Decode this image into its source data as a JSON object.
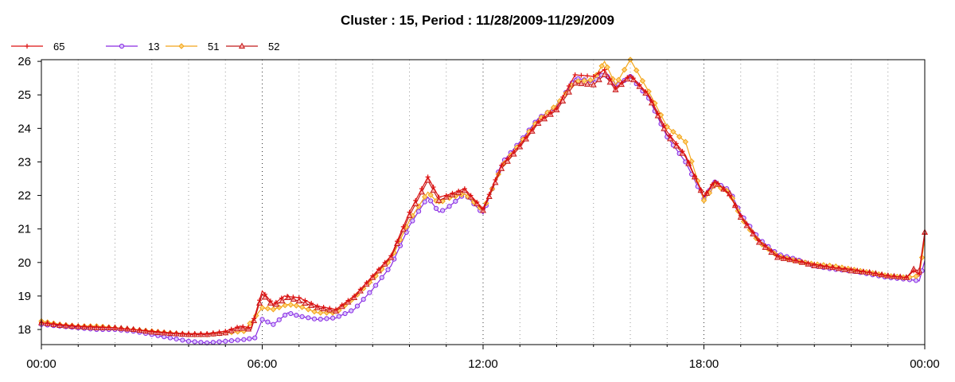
{
  "chart_data": {
    "type": "line",
    "title": "Cluster : 15, Period : 11/28/2009-11/29/2009",
    "xlabel": "",
    "ylabel": "",
    "x_unit": "hours since 11/28/2009 00:00",
    "xlim": [
      0,
      24
    ],
    "ylim": [
      17.55,
      26.05
    ],
    "x_ticks": [
      {
        "value": 0,
        "label": "00:00"
      },
      {
        "value": 6,
        "label": "06:00"
      },
      {
        "value": 12,
        "label": "12:00"
      },
      {
        "value": 18,
        "label": "18:00"
      },
      {
        "value": 24,
        "label": "00:00"
      }
    ],
    "y_ticks": [
      {
        "value": 18,
        "label": "18"
      },
      {
        "value": 19,
        "label": "19"
      },
      {
        "value": 20,
        "label": "20"
      },
      {
        "value": 21,
        "label": "21"
      },
      {
        "value": 22,
        "label": "22"
      },
      {
        "value": 23,
        "label": "23"
      },
      {
        "value": 24,
        "label": "24"
      },
      {
        "value": 25,
        "label": "25"
      },
      {
        "value": 26,
        "label": "26"
      }
    ],
    "grid": {
      "vertical_dotted_every_hours": 1,
      "horizontal": false
    },
    "legend_position": "top-left",
    "series": [
      {
        "name": "65",
        "color": "#dd1111",
        "marker": "plus",
        "points": [
          [
            0,
            18.2
          ],
          [
            0.5,
            18.15
          ],
          [
            1,
            18.1
          ],
          [
            1.5,
            18.08
          ],
          [
            2,
            18.05
          ],
          [
            2.5,
            18.0
          ],
          [
            3,
            17.95
          ],
          [
            3.5,
            17.9
          ],
          [
            4,
            17.88
          ],
          [
            4.5,
            17.88
          ],
          [
            5,
            17.95
          ],
          [
            5.4,
            18.1
          ],
          [
            5.7,
            18.05
          ],
          [
            6,
            19.15
          ],
          [
            6.3,
            18.75
          ],
          [
            6.6,
            19.0
          ],
          [
            7,
            18.95
          ],
          [
            7.5,
            18.7
          ],
          [
            8,
            18.6
          ],
          [
            8.5,
            19.0
          ],
          [
            9,
            19.6
          ],
          [
            9.5,
            20.2
          ],
          [
            10,
            21.5
          ],
          [
            10.5,
            22.55
          ],
          [
            10.8,
            21.95
          ],
          [
            11,
            22.0
          ],
          [
            11.5,
            22.2
          ],
          [
            12,
            21.6
          ],
          [
            12.5,
            22.9
          ],
          [
            13,
            23.5
          ],
          [
            13.5,
            24.2
          ],
          [
            14,
            24.6
          ],
          [
            14.5,
            25.6
          ],
          [
            15,
            25.55
          ],
          [
            15.3,
            25.75
          ],
          [
            15.6,
            25.2
          ],
          [
            16,
            25.6
          ],
          [
            16.5,
            25.0
          ],
          [
            17,
            23.9
          ],
          [
            17.5,
            23.2
          ],
          [
            18,
            21.95
          ],
          [
            18.3,
            22.45
          ],
          [
            18.7,
            22.0
          ],
          [
            19,
            21.4
          ],
          [
            19.5,
            20.65
          ],
          [
            20,
            20.2
          ],
          [
            20.5,
            20.05
          ],
          [
            21,
            19.95
          ],
          [
            21.5,
            19.85
          ],
          [
            22,
            19.8
          ],
          [
            22.5,
            19.7
          ],
          [
            23,
            19.6
          ],
          [
            23.5,
            19.55
          ],
          [
            23.7,
            19.75
          ],
          [
            23.85,
            19.65
          ],
          [
            24,
            20.85
          ]
        ]
      },
      {
        "name": "13",
        "color": "#8a2be2",
        "marker": "circle",
        "points": [
          [
            0,
            18.15
          ],
          [
            0.5,
            18.1
          ],
          [
            1,
            18.05
          ],
          [
            1.5,
            18.0
          ],
          [
            2,
            18.0
          ],
          [
            2.5,
            17.95
          ],
          [
            3,
            17.85
          ],
          [
            3.5,
            17.75
          ],
          [
            4,
            17.65
          ],
          [
            4.5,
            17.6
          ],
          [
            5,
            17.65
          ],
          [
            5.5,
            17.7
          ],
          [
            5.8,
            17.75
          ],
          [
            6,
            18.3
          ],
          [
            6.3,
            18.15
          ],
          [
            6.7,
            18.5
          ],
          [
            7,
            18.4
          ],
          [
            7.5,
            18.3
          ],
          [
            8,
            18.35
          ],
          [
            8.5,
            18.6
          ],
          [
            9,
            19.2
          ],
          [
            9.5,
            19.9
          ],
          [
            10,
            21.1
          ],
          [
            10.5,
            21.95
          ],
          [
            10.8,
            21.5
          ],
          [
            11,
            21.6
          ],
          [
            11.5,
            22.05
          ],
          [
            12,
            21.45
          ],
          [
            12.5,
            22.95
          ],
          [
            13,
            23.6
          ],
          [
            13.5,
            24.3
          ],
          [
            14,
            24.65
          ],
          [
            14.5,
            25.5
          ],
          [
            15,
            25.4
          ],
          [
            15.3,
            25.65
          ],
          [
            15.6,
            25.25
          ],
          [
            16,
            25.55
          ],
          [
            16.5,
            24.9
          ],
          [
            17,
            23.75
          ],
          [
            17.5,
            23.0
          ],
          [
            18,
            21.9
          ],
          [
            18.3,
            22.4
          ],
          [
            18.7,
            22.15
          ],
          [
            19,
            21.45
          ],
          [
            19.5,
            20.7
          ],
          [
            20,
            20.25
          ],
          [
            20.5,
            20.1
          ],
          [
            21,
            19.9
          ],
          [
            21.5,
            19.8
          ],
          [
            22,
            19.75
          ],
          [
            22.5,
            19.65
          ],
          [
            23,
            19.55
          ],
          [
            23.5,
            19.5
          ],
          [
            23.85,
            19.45
          ],
          [
            24,
            20.05
          ]
        ]
      },
      {
        "name": "51",
        "color": "#f2a51a",
        "marker": "diamond",
        "points": [
          [
            0,
            18.25
          ],
          [
            0.5,
            18.15
          ],
          [
            1,
            18.1
          ],
          [
            1.5,
            18.1
          ],
          [
            2,
            18.05
          ],
          [
            2.5,
            18.0
          ],
          [
            3,
            17.95
          ],
          [
            3.5,
            17.9
          ],
          [
            4,
            17.85
          ],
          [
            4.5,
            17.85
          ],
          [
            5,
            17.9
          ],
          [
            5.5,
            17.95
          ],
          [
            6,
            18.65
          ],
          [
            6.3,
            18.6
          ],
          [
            6.7,
            18.75
          ],
          [
            7,
            18.7
          ],
          [
            7.5,
            18.5
          ],
          [
            8,
            18.5
          ],
          [
            8.5,
            18.95
          ],
          [
            9,
            19.5
          ],
          [
            9.5,
            20.1
          ],
          [
            10,
            21.25
          ],
          [
            10.5,
            22.1
          ],
          [
            10.8,
            21.75
          ],
          [
            11,
            21.9
          ],
          [
            11.5,
            22.05
          ],
          [
            12,
            21.55
          ],
          [
            12.5,
            22.85
          ],
          [
            13,
            23.55
          ],
          [
            13.5,
            24.25
          ],
          [
            14,
            24.7
          ],
          [
            14.5,
            25.4
          ],
          [
            15,
            25.45
          ],
          [
            15.3,
            26.0
          ],
          [
            15.6,
            25.3
          ],
          [
            16,
            26.05
          ],
          [
            16.5,
            25.1
          ],
          [
            17,
            24.05
          ],
          [
            17.5,
            23.6
          ],
          [
            18,
            21.85
          ],
          [
            18.3,
            22.3
          ],
          [
            18.7,
            22.1
          ],
          [
            19,
            21.35
          ],
          [
            19.5,
            20.6
          ],
          [
            20,
            20.2
          ],
          [
            20.5,
            20.05
          ],
          [
            21,
            19.95
          ],
          [
            21.5,
            19.9
          ],
          [
            22,
            19.8
          ],
          [
            22.5,
            19.7
          ],
          [
            23,
            19.6
          ],
          [
            23.5,
            19.55
          ],
          [
            23.85,
            19.6
          ],
          [
            24,
            20.7
          ]
        ]
      },
      {
        "name": "52",
        "color": "#c21a1a",
        "marker": "triangle",
        "points": [
          [
            0,
            18.2
          ],
          [
            0.5,
            18.12
          ],
          [
            1,
            18.08
          ],
          [
            1.5,
            18.05
          ],
          [
            2,
            18.05
          ],
          [
            2.5,
            18.0
          ],
          [
            3,
            17.92
          ],
          [
            3.5,
            17.88
          ],
          [
            4,
            17.85
          ],
          [
            4.5,
            17.85
          ],
          [
            5,
            17.9
          ],
          [
            5.4,
            18.05
          ],
          [
            5.7,
            18.0
          ],
          [
            6,
            19.05
          ],
          [
            6.3,
            18.7
          ],
          [
            6.7,
            18.95
          ],
          [
            7,
            18.85
          ],
          [
            7.5,
            18.65
          ],
          [
            8,
            18.55
          ],
          [
            8.5,
            18.95
          ],
          [
            9,
            19.55
          ],
          [
            9.5,
            20.15
          ],
          [
            10,
            21.4
          ],
          [
            10.5,
            22.45
          ],
          [
            10.8,
            21.85
          ],
          [
            11,
            21.95
          ],
          [
            11.5,
            22.15
          ],
          [
            12,
            21.55
          ],
          [
            12.5,
            22.8
          ],
          [
            13,
            23.45
          ],
          [
            13.5,
            24.15
          ],
          [
            14,
            24.55
          ],
          [
            14.5,
            25.35
          ],
          [
            15,
            25.3
          ],
          [
            15.3,
            25.6
          ],
          [
            15.6,
            25.15
          ],
          [
            16,
            25.55
          ],
          [
            16.5,
            24.95
          ],
          [
            17,
            23.8
          ],
          [
            17.5,
            23.15
          ],
          [
            18,
            21.95
          ],
          [
            18.3,
            22.4
          ],
          [
            18.7,
            22.05
          ],
          [
            19,
            21.35
          ],
          [
            19.5,
            20.6
          ],
          [
            20,
            20.15
          ],
          [
            20.5,
            20.05
          ],
          [
            21,
            19.9
          ],
          [
            21.5,
            19.85
          ],
          [
            22,
            19.75
          ],
          [
            22.5,
            19.7
          ],
          [
            23,
            19.6
          ],
          [
            23.5,
            19.55
          ],
          [
            23.7,
            19.8
          ],
          [
            23.85,
            19.75
          ],
          [
            24,
            20.9
          ]
        ]
      }
    ]
  }
}
